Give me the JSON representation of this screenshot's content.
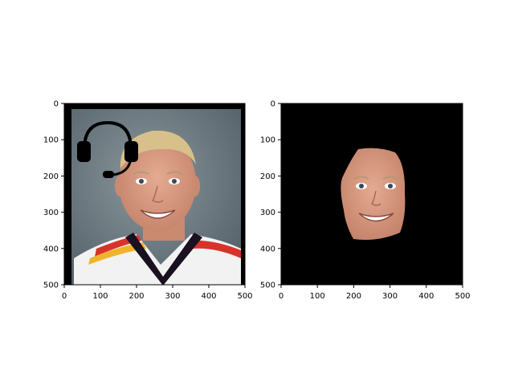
{
  "chart_data": [
    {
      "type": "image",
      "title": "",
      "xlabel": "",
      "ylabel": "",
      "xlim": [
        0,
        500
      ],
      "ylim": [
        500,
        0
      ],
      "x_ticks": [
        0,
        100,
        200,
        300,
        400,
        500
      ],
      "y_ticks": [
        0,
        100,
        200,
        300,
        400,
        500
      ],
      "content": "portrait photo with black border and headset icon overlay"
    },
    {
      "type": "image",
      "title": "",
      "xlabel": "",
      "ylabel": "",
      "xlim": [
        0,
        500
      ],
      "ylim": [
        500,
        0
      ],
      "x_ticks": [
        0,
        100,
        200,
        300,
        400,
        500
      ],
      "y_ticks": [
        0,
        100,
        200,
        300,
        400,
        500
      ],
      "content": "segmented face on black background"
    }
  ],
  "colors": {
    "background_black": "#000000",
    "photo_backdrop": "#6c7a80",
    "skin": "#d79a80",
    "hair": "#d8c08a",
    "jersey_white": "#f2f2f2",
    "jersey_red": "#d8332a",
    "jersey_yellow": "#f0b42a",
    "collar": "#1a1020"
  },
  "icons": [
    "headset-icon"
  ]
}
